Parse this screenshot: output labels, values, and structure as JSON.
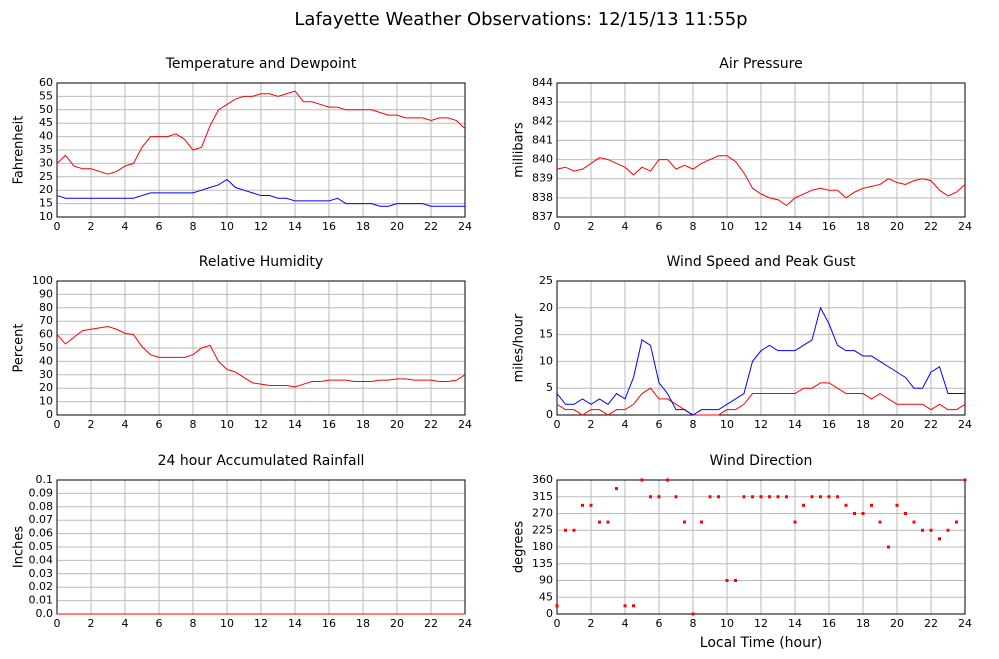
{
  "title": "Lafayette Weather Observations: 12/15/13 11:55p",
  "chart_data": [
    {
      "type": "line",
      "title": "Temperature and Dewpoint",
      "ylabel": "Fahrenheit",
      "x": [
        0,
        0.5,
        1,
        1.5,
        2,
        2.5,
        3,
        3.5,
        4,
        4.5,
        5,
        5.5,
        6,
        6.5,
        7,
        7.5,
        8,
        8.5,
        9,
        9.5,
        10,
        10.5,
        11,
        11.5,
        12,
        12.5,
        13,
        13.5,
        14,
        14.5,
        15,
        15.5,
        16,
        16.5,
        17,
        17.5,
        18,
        18.5,
        19,
        19.5,
        20,
        20.5,
        21,
        21.5,
        22,
        22.5,
        23,
        23.5,
        24
      ],
      "series": [
        {
          "color": "#ff0000",
          "values": [
            30,
            33,
            29,
            28,
            28,
            27,
            26,
            27,
            29,
            30,
            36,
            40,
            40,
            40,
            41,
            39,
            35,
            36,
            44,
            50,
            52,
            54,
            55,
            55,
            56,
            56,
            55,
            56,
            57,
            53,
            53,
            52,
            51,
            51,
            50,
            50,
            50,
            50,
            49,
            48,
            48,
            47,
            47,
            47,
            46,
            47,
            47,
            46,
            43
          ]
        },
        {
          "color": "#0000ff",
          "values": [
            18,
            17,
            17,
            17,
            17,
            17,
            17,
            17,
            17,
            17,
            18,
            19,
            19,
            19,
            19,
            19,
            19,
            20,
            21,
            22,
            24,
            21,
            20,
            19,
            18,
            18,
            17,
            17,
            16,
            16,
            16,
            16,
            16,
            17,
            15,
            15,
            15,
            15,
            14,
            14,
            15,
            15,
            15,
            15,
            14,
            14,
            14,
            14,
            14
          ]
        }
      ],
      "xlim": [
        0,
        24
      ],
      "xticks": [
        0,
        2,
        4,
        6,
        8,
        10,
        12,
        14,
        16,
        18,
        20,
        22,
        24
      ],
      "ylim": [
        10,
        60
      ],
      "yticks": [
        10,
        15,
        20,
        25,
        30,
        35,
        40,
        45,
        50,
        55,
        60
      ],
      "grid": true
    },
    {
      "type": "line",
      "title": "Air Pressure",
      "ylabel": "millibars",
      "x": [
        0,
        0.5,
        1,
        1.5,
        2,
        2.5,
        3,
        3.5,
        4,
        4.5,
        5,
        5.5,
        6,
        6.5,
        7,
        7.5,
        8,
        8.5,
        9,
        9.5,
        10,
        10.5,
        11,
        11.5,
        12,
        12.5,
        13,
        13.5,
        14,
        14.5,
        15,
        15.5,
        16,
        16.5,
        17,
        17.5,
        18,
        18.5,
        19,
        19.5,
        20,
        20.5,
        21,
        21.5,
        22,
        22.5,
        23,
        23.5,
        24
      ],
      "series": [
        {
          "color": "#ff0000",
          "values": [
            839.5,
            839.6,
            839.4,
            839.5,
            839.8,
            840.1,
            840.0,
            839.8,
            839.6,
            839.2,
            839.6,
            839.4,
            840.0,
            840.0,
            839.5,
            839.7,
            839.5,
            839.8,
            840.0,
            840.2,
            840.2,
            839.9,
            839.3,
            838.5,
            838.2,
            838.0,
            837.9,
            837.6,
            838.0,
            838.2,
            838.4,
            838.5,
            838.4,
            838.4,
            838.0,
            838.3,
            838.5,
            838.6,
            838.7,
            839.0,
            838.8,
            838.7,
            838.9,
            839.0,
            838.9,
            838.4,
            838.1,
            838.3,
            838.7
          ]
        }
      ],
      "xlim": [
        0,
        24
      ],
      "xticks": [
        0,
        2,
        4,
        6,
        8,
        10,
        12,
        14,
        16,
        18,
        20,
        22,
        24
      ],
      "ylim": [
        837,
        844
      ],
      "yticks": [
        837,
        838,
        839,
        840,
        841,
        842,
        843,
        844
      ],
      "grid": true
    },
    {
      "type": "line",
      "title": "Relative Humidity",
      "ylabel": "Percent",
      "x": [
        0,
        0.5,
        1,
        1.5,
        2,
        2.5,
        3,
        3.5,
        4,
        4.5,
        5,
        5.5,
        6,
        6.5,
        7,
        7.5,
        8,
        8.5,
        9,
        9.5,
        10,
        10.5,
        11,
        11.5,
        12,
        12.5,
        13,
        13.5,
        14,
        14.5,
        15,
        15.5,
        16,
        16.5,
        17,
        17.5,
        18,
        18.5,
        19,
        19.5,
        20,
        20.5,
        21,
        21.5,
        22,
        22.5,
        23,
        23.5,
        24
      ],
      "series": [
        {
          "color": "#ff0000",
          "values": [
            60,
            53,
            58,
            63,
            64,
            65,
            66,
            64,
            61,
            60,
            51,
            45,
            43,
            43,
            43,
            43,
            45,
            50,
            52,
            40,
            34,
            32,
            28,
            24,
            23,
            22,
            22,
            22,
            21,
            23,
            25,
            25,
            26,
            26,
            26,
            25,
            25,
            25,
            26,
            26,
            27,
            27,
            26,
            26,
            26,
            25,
            25,
            26,
            30
          ]
        }
      ],
      "xlim": [
        0,
        24
      ],
      "xticks": [
        0,
        2,
        4,
        6,
        8,
        10,
        12,
        14,
        16,
        18,
        20,
        22,
        24
      ],
      "ylim": [
        0,
        100
      ],
      "yticks": [
        0,
        10,
        20,
        30,
        40,
        50,
        60,
        70,
        80,
        90,
        100
      ],
      "grid": true
    },
    {
      "type": "line",
      "title": "Wind Speed and Peak Gust",
      "ylabel": "miles/hour",
      "x": [
        0,
        0.5,
        1,
        1.5,
        2,
        2.5,
        3,
        3.5,
        4,
        4.5,
        5,
        5.5,
        6,
        6.5,
        7,
        7.5,
        8,
        8.5,
        9,
        9.5,
        10,
        10.5,
        11,
        11.5,
        12,
        12.5,
        13,
        13.5,
        14,
        14.5,
        15,
        15.5,
        16,
        16.5,
        17,
        17.5,
        18,
        18.5,
        19,
        19.5,
        20,
        20.5,
        21,
        21.5,
        22,
        22.5,
        23,
        23.5,
        24
      ],
      "series": [
        {
          "color": "#ff0000",
          "values": [
            2,
            1,
            1,
            0,
            1,
            1,
            0,
            1,
            1,
            2,
            4,
            5,
            3,
            3,
            2,
            1,
            0,
            0,
            0,
            0,
            1,
            1,
            2,
            4,
            4,
            4,
            4,
            4,
            4,
            5,
            5,
            6,
            6,
            5,
            4,
            4,
            4,
            3,
            4,
            3,
            2,
            2,
            2,
            2,
            1,
            2,
            1,
            1,
            2
          ]
        },
        {
          "color": "#0000ff",
          "values": [
            4,
            2,
            2,
            3,
            2,
            3,
            2,
            4,
            3,
            7,
            14,
            13,
            6,
            4,
            1,
            1,
            0,
            1,
            1,
            1,
            2,
            3,
            4,
            10,
            12,
            13,
            12,
            12,
            12,
            13,
            14,
            20,
            17,
            13,
            12,
            12,
            11,
            11,
            10,
            9,
            8,
            7,
            5,
            5,
            8,
            9,
            4,
            4,
            4
          ]
        }
      ],
      "xlim": [
        0,
        24
      ],
      "xticks": [
        0,
        2,
        4,
        6,
        8,
        10,
        12,
        14,
        16,
        18,
        20,
        22,
        24
      ],
      "ylim": [
        0,
        25
      ],
      "yticks": [
        0,
        5,
        10,
        15,
        20,
        25
      ],
      "grid": true
    },
    {
      "type": "line",
      "title": "24 hour Accumulated Rainfall",
      "ylabel": "Inches",
      "x": [
        0,
        24
      ],
      "series": [
        {
          "color": "#ff0000",
          "values": [
            0,
            0
          ]
        }
      ],
      "xlim": [
        0,
        24
      ],
      "xticks": [
        0,
        2,
        4,
        6,
        8,
        10,
        12,
        14,
        16,
        18,
        20,
        22,
        24
      ],
      "ylim": [
        0,
        0.1
      ],
      "yticks": [
        {
          "value": 0,
          "label": "0.0"
        },
        0.01,
        0.02,
        0.03,
        0.04,
        0.05,
        0.06,
        0.07,
        0.08,
        0.09,
        0.1
      ],
      "grid": true
    },
    {
      "type": "scatter",
      "title": "Wind Direction",
      "ylabel": "degrees",
      "xlabel": "Local Time (hour)",
      "x": [
        0,
        0.5,
        1,
        1.5,
        2,
        2.5,
        3,
        3.5,
        4,
        4.5,
        5,
        5.5,
        6,
        6.5,
        7,
        7.5,
        8,
        8.5,
        9,
        9.5,
        10,
        10.5,
        11,
        11.5,
        12,
        12.5,
        13,
        13.5,
        14,
        14.5,
        15,
        15.5,
        16,
        16.5,
        17,
        17.5,
        18,
        18.5,
        19,
        19.5,
        20,
        20.5,
        21,
        21.5,
        22,
        22.5,
        23,
        23.5,
        24
      ],
      "series": [
        {
          "color": "#ff0000",
          "values": [
            22,
            225,
            225,
            292,
            292,
            247,
            247,
            337,
            22,
            22,
            360,
            315,
            315,
            360,
            315,
            247,
            0,
            247,
            315,
            315,
            90,
            90,
            315,
            315,
            315,
            315,
            315,
            315,
            247,
            292,
            315,
            315,
            315,
            315,
            292,
            270,
            270,
            292,
            247,
            180,
            292,
            270,
            247,
            225,
            225,
            202,
            225,
            247,
            360
          ]
        }
      ],
      "xlim": [
        0,
        24
      ],
      "xticks": [
        0,
        2,
        4,
        6,
        8,
        10,
        12,
        14,
        16,
        18,
        20,
        22,
        24
      ],
      "ylim": [
        0,
        360
      ],
      "yticks": [
        0,
        45,
        90,
        135,
        180,
        225,
        270,
        315,
        360
      ],
      "grid": true
    }
  ]
}
